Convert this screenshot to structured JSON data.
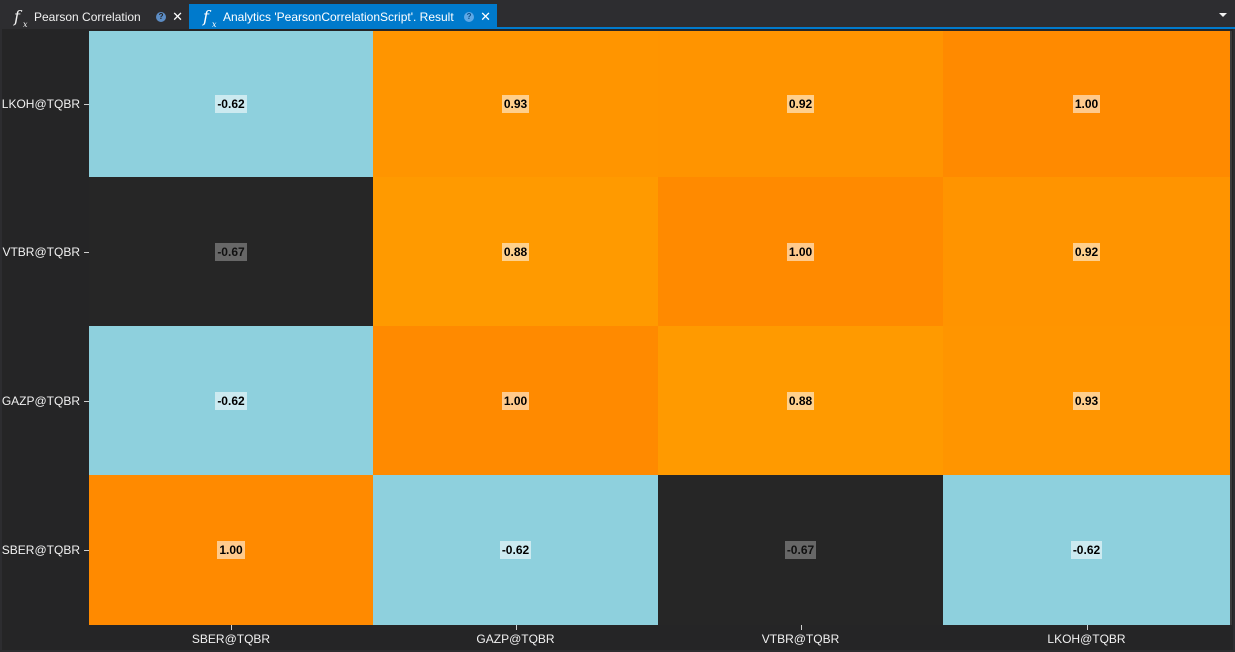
{
  "tabs": [
    {
      "label": "Pearson Correlation",
      "active": false,
      "icon": "fx-icon"
    },
    {
      "label": "Analytics 'PearsonCorrelationScript'. Result",
      "active": true,
      "icon": "fx-icon"
    }
  ],
  "tab_controls": {
    "help_glyph": "?",
    "close_glyph": "✕"
  },
  "colors": {
    "accent": "#007acc",
    "positive_high": "#ff8a00",
    "positive_mid": "#ff9500",
    "positive_low": "#ff9a00",
    "negative": "#8ecfdc",
    "negative_strong": "#262626"
  },
  "chart_data": {
    "type": "heatmap",
    "x_labels": [
      "SBER@TQBR",
      "GAZP@TQBR",
      "VTBR@TQBR",
      "LKOH@TQBR"
    ],
    "y_labels": [
      "LKOH@TQBR",
      "VTBR@TQBR",
      "GAZP@TQBR",
      "SBER@TQBR"
    ],
    "values": [
      [
        "-0.62",
        "0.93",
        "0.92",
        "1.00"
      ],
      [
        "-0.67",
        "0.88",
        "1.00",
        "0.92"
      ],
      [
        "-0.62",
        "1.00",
        "0.88",
        "0.93"
      ],
      [
        "1.00",
        "-0.62",
        "-0.67",
        "-0.62"
      ]
    ],
    "cell_colors": [
      [
        "#8ed0dd",
        "#ff9500",
        "#ff9400",
        "#ff8a00"
      ],
      [
        "#262626",
        "#ff9a00",
        "#ff8a00",
        "#ff9400"
      ],
      [
        "#8ed0dd",
        "#ff8a00",
        "#ff9a00",
        "#ff9500"
      ],
      [
        "#ff8a00",
        "#8ed0dd",
        "#262626",
        "#8ed0dd"
      ]
    ]
  }
}
